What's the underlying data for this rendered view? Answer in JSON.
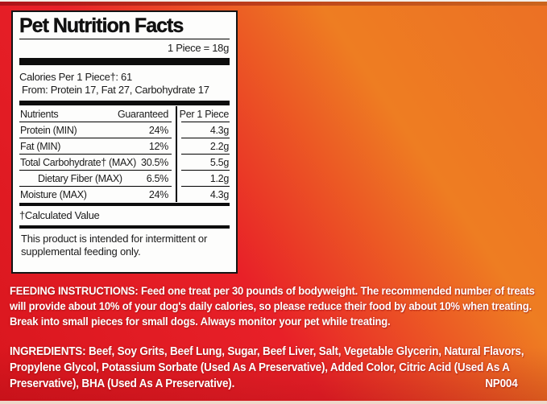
{
  "panel": {
    "title": "Pet Nutrition Facts",
    "serving": "1 Piece = 18g",
    "calories_line1": "Calories Per 1 Piece†: 61",
    "calories_line2": "From: Protein 17, Fat 27, Carbohydrate 17",
    "table": {
      "headers": [
        "Nutrients",
        "Guaranteed",
        "Per 1 Piece"
      ],
      "rows": [
        {
          "label": "Protein (MIN)",
          "guaranteed": "24%",
          "per_piece": "4.3g"
        },
        {
          "label": "Fat (MIN)",
          "guaranteed": "12%",
          "per_piece": "2.2g"
        },
        {
          "label": "Total Carbohydrate† (MAX)",
          "guaranteed": "30.5%",
          "per_piece": "5.5g"
        },
        {
          "label": "Dietary Fiber (MAX)",
          "guaranteed": "6.5%",
          "per_piece": "1.2g"
        },
        {
          "label": "Moisture (MAX)",
          "guaranteed": "24%",
          "per_piece": "4.3g"
        }
      ]
    },
    "footnote": "†Calculated Value",
    "note": "This product is intended for intermittent or supplemental feeding only."
  },
  "feeding": {
    "label": "FEEDING INSTRUCTIONS:",
    "text": "Feed one treat per 30 pounds of bodyweight. The recommended number of treats will provide about 10% of your dog's daily calories, so please reduce their food by about 10% when treating. Break into small pieces for small dogs. Always monitor your pet while treating."
  },
  "ingredients": {
    "label": "INGREDIENTS:",
    "text": "Beef, Soy Grits, Beef Lung, Sugar, Beef Liver, Salt, Vegetable Glycerin, Natural Flavors, Propylene Glycol, Potassium Sorbate (Used As A Preservative), Added Color, Citric Acid (Used As A Preservative), BHA (Used As A Preservative).",
    "code": "NP004"
  },
  "colors": {
    "background_red": "#e82028",
    "background_orange": "#ec7024",
    "panel_background": "#fdfdfc",
    "panel_border": "#141414",
    "text_white": "#ffffff"
  }
}
